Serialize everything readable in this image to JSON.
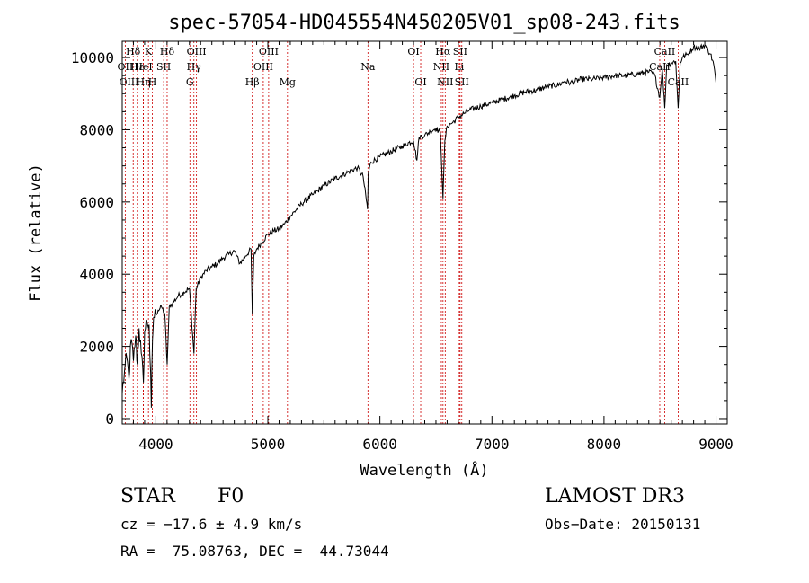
{
  "chart_data": {
    "type": "line",
    "title": "spec-57054-HD045554N450205V01_sp08-243.fits",
    "xlabel": "Wavelength (Å)",
    "ylabel": "Flux (relative)",
    "xlim": [
      3700,
      9100
    ],
    "ylim": [
      -150,
      10450
    ],
    "x_ticks": [
      4000,
      5000,
      6000,
      7000,
      8000,
      9000
    ],
    "x_tick_labels": [
      "4000",
      "5000",
      "6000",
      "7000",
      "8000",
      "9000"
    ],
    "y_ticks": [
      0,
      2000,
      4000,
      6000,
      8000,
      10000
    ],
    "y_tick_labels": [
      "0",
      "2000",
      "4000",
      "6000",
      "8000",
      "10000"
    ],
    "grid": false,
    "series": [
      {
        "name": "spectrum",
        "color": "#000000",
        "x": [
          3700,
          3720,
          3740,
          3760,
          3780,
          3800,
          3820,
          3835,
          3850,
          3870,
          3889,
          3900,
          3920,
          3940,
          3960,
          3970,
          3980,
          4000,
          4020,
          4050,
          4080,
          4101,
          4120,
          4150,
          4200,
          4250,
          4300,
          4340,
          4360,
          4400,
          4450,
          4500,
          4550,
          4600,
          4650,
          4700,
          4750,
          4800,
          4850,
          4861,
          4875,
          4900,
          4950,
          5000,
          5050,
          5100,
          5150,
          5200,
          5300,
          5400,
          5500,
          5600,
          5700,
          5800,
          5850,
          5890,
          5896,
          5920,
          6000,
          6100,
          6200,
          6300,
          6330,
          6350,
          6400,
          6450,
          6500,
          6540,
          6563,
          6580,
          6600,
          6650,
          6700,
          6750,
          6800,
          6900,
          7000,
          7100,
          7200,
          7300,
          7400,
          7500,
          7600,
          7650,
          7700,
          7800,
          7900,
          8000,
          8100,
          8200,
          8300,
          8400,
          8450,
          8498,
          8520,
          8542,
          8560,
          8600,
          8640,
          8662,
          8680,
          8700,
          8750,
          8800,
          8850,
          8900,
          8950,
          8980,
          9000
        ],
        "y": [
          700,
          1300,
          1700,
          1100,
          2200,
          1600,
          2300,
          1500,
          2500,
          1800,
          1000,
          2400,
          2700,
          2600,
          300,
          2200,
          2800,
          2900,
          3000,
          3100,
          2900,
          1500,
          3100,
          3200,
          3400,
          3500,
          3600,
          1800,
          3600,
          3900,
          4100,
          4200,
          4300,
          4450,
          4550,
          4650,
          4300,
          4500,
          4700,
          2900,
          4500,
          4700,
          4900,
          5100,
          5200,
          5250,
          5400,
          5600,
          5950,
          6200,
          6450,
          6650,
          6800,
          6950,
          6700,
          5800,
          6800,
          7100,
          7250,
          7400,
          7550,
          7700,
          7150,
          7800,
          7850,
          7950,
          8050,
          7900,
          6100,
          7700,
          8100,
          8200,
          8350,
          8450,
          8550,
          8650,
          8750,
          8850,
          8950,
          9050,
          9100,
          9200,
          9250,
          9350,
          9300,
          9400,
          9400,
          9450,
          9500,
          9500,
          9550,
          9600,
          9550,
          8900,
          9700,
          8600,
          9800,
          9850,
          9900,
          8600,
          9850,
          10000,
          10100,
          10300,
          10250,
          10350,
          10100,
          9800,
          9300
        ]
      }
    ],
    "lines": [
      {
        "label": "Hδ",
        "x": 3798,
        "row": 1
      },
      {
        "label": "OII",
        "x": 3727,
        "row": 2
      },
      {
        "label": "OIII",
        "x": 3760,
        "row": 3
      },
      {
        "label": "Hε",
        "x": 3835,
        "row": 2
      },
      {
        "label": "Hη",
        "x": 3889,
        "row": 3
      },
      {
        "label": "K",
        "x": 3934,
        "row": 1
      },
      {
        "label": "H",
        "x": 3969,
        "row": 3
      },
      {
        "label": "HeI",
        "x": 3889,
        "row": 2
      },
      {
        "label": "SII",
        "x": 4070,
        "row": 2
      },
      {
        "label": "Hδ",
        "x": 4101,
        "row": 1
      },
      {
        "label": "OIII",
        "x": 4363,
        "row": 1
      },
      {
        "label": "Hγ",
        "x": 4340,
        "row": 2
      },
      {
        "label": "G",
        "x": 4304,
        "row": 3
      },
      {
        "label": "Hβ",
        "x": 4861,
        "row": 3
      },
      {
        "label": "OIII",
        "x": 5007,
        "row": 1
      },
      {
        "label": "OIII",
        "x": 4959,
        "row": 2
      },
      {
        "label": "Mg",
        "x": 5175,
        "row": 3
      },
      {
        "label": "Na",
        "x": 5893,
        "row": 2
      },
      {
        "label": "OI",
        "x": 6300,
        "row": 1
      },
      {
        "label": "OI",
        "x": 6364,
        "row": 3
      },
      {
        "label": "Hα",
        "x": 6563,
        "row": 1
      },
      {
        "label": "SII",
        "x": 6716,
        "row": 1
      },
      {
        "label": "NII",
        "x": 6548,
        "row": 2
      },
      {
        "label": "Li",
        "x": 6708,
        "row": 2
      },
      {
        "label": "NII",
        "x": 6583,
        "row": 3
      },
      {
        "label": "SII",
        "x": 6731,
        "row": 3
      },
      {
        "label": "CaII",
        "x": 8542,
        "row": 1
      },
      {
        "label": "CaII",
        "x": 8498,
        "row": 2
      },
      {
        "label": "CaII",
        "x": 8662,
        "row": 3
      }
    ],
    "line_color": "#cc0000"
  },
  "footer": {
    "object_class": "STAR",
    "subclass": "F0",
    "survey": "LAMOST DR3",
    "redshift": "cz = −17.6 ± 4.9 km/s",
    "obs_date": "Obs−Date: 20150131",
    "coords": "RA =  75.08763, DEC =  44.73044"
  }
}
